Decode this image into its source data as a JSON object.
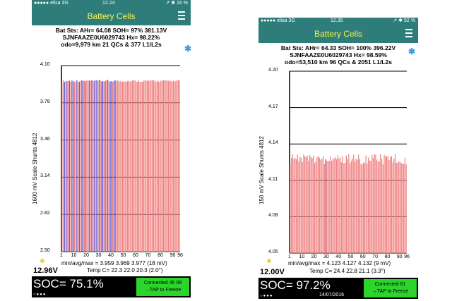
{
  "screens": [
    {
      "status": {
        "carrier": "●●●●● elisa 3G",
        "time": "12.24",
        "right": "↗ ✱ 16 %"
      },
      "title": "Battery Cells",
      "info": [
        "Bat Sts: AHr= 64.08 SOH= 97% 381.13V",
        "SJNFAAZE0U6029743  Hx= 98.22%",
        "odo=9,979 km 21 QCs & 377 L1/L2s"
      ],
      "y_axis_title": "1600 mV Scale   Shunts 4812",
      "stats": "min/avg/max = 3.959 3.969 3.977 (18 mV)",
      "temp": "Temp C= 22.3  22.0  20.3 (2.0°)",
      "voltage": "12.96V",
      "soc": "SOC= 75.1%",
      "date": "",
      "connected": [
        "Connected 45 09",
        "→TAP to Freeze"
      ]
    },
    {
      "status": {
        "carrier": "●●●●● elisa 3G",
        "time": "12.35",
        "right": "↗ ✱ 52 %"
      },
      "title": "Battery Cells",
      "info": [
        "Bat Sts: AHr= 64.33 SOH= 100% 396.22V",
        "SJNFAAZE0U6029743  Hx= 98.59%",
        "odo=53,510 km 96 QCs & 2051 L1/L2s"
      ],
      "y_axis_title": "150 mV Scale   Shunts 4812",
      "stats": "min/avg/max = 4.123 4.127 4.132 (9 mV)",
      "temp": "Temp C= 24.4  22.8  21.1 (3.3°)",
      "voltage": "12.00V",
      "soc": "SOC= 97.2%",
      "date": "14/07/2016",
      "connected": [
        "Connected 61",
        "→TAP to Freeze"
      ]
    }
  ],
  "colors": {
    "header": "#2f7d7a",
    "title": "#f4f44a",
    "bar": "#f08080",
    "shunt": "#6a5acd",
    "connected": "#2bd52b"
  },
  "chart_data": [
    {
      "type": "bar",
      "xlabel": "",
      "ylabel": "1600 mV Scale   Shunts 4812",
      "ylim": [
        2.5,
        4.1
      ],
      "yticks": [
        "4.10",
        "3.78",
        "3.46",
        "3.14",
        "2.82",
        "2.50"
      ],
      "xticks": [
        "1",
        "10",
        "20",
        "30",
        "40",
        "50",
        "60",
        "70",
        "80",
        "90",
        "96"
      ],
      "n": 96,
      "min": 3.959,
      "avg": 3.969,
      "max": 3.977,
      "shunted": [
        3,
        5,
        7,
        9,
        10,
        13,
        15,
        17,
        18,
        20,
        23,
        25,
        27,
        29,
        31,
        33,
        34,
        36,
        38,
        40,
        41,
        43,
        44
      ]
    },
    {
      "type": "bar",
      "xlabel": "",
      "ylabel": "150 mV Scale   Shunts 4812",
      "ylim": [
        4.05,
        4.2
      ],
      "yticks": [
        "4.20",
        "4.17",
        "4.14",
        "4.11",
        "4.08",
        "4.05"
      ],
      "xticks": [
        "1",
        "10",
        "20",
        "30",
        "40",
        "50",
        "60",
        "70",
        "80",
        "90",
        "96"
      ],
      "n": 96,
      "min": 4.123,
      "avg": 4.127,
      "max": 4.132,
      "shunted": [
        30
      ]
    }
  ]
}
